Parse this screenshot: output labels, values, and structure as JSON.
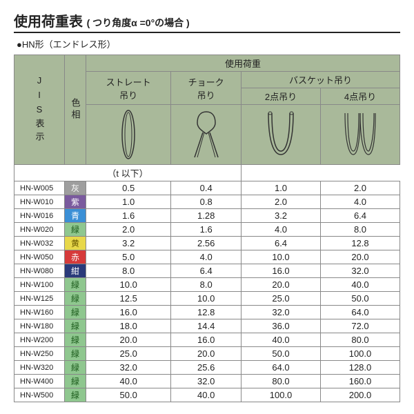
{
  "title_main": "使用荷重表",
  "title_sub": "( つり角度α =0°の場合 )",
  "subtitle": "●HN形（エンドレス形）",
  "header_top": "使用荷重",
  "header_cols": [
    "ストレート\n吊り",
    "チョーク\n吊り"
  ],
  "header_basket": "バスケット吊り",
  "header_basket_sub": [
    "2点吊り",
    "4点吊り"
  ],
  "jis_label": "JIS表示",
  "color_label": "色相",
  "unit_label": "（t 以下）",
  "rows": [
    {
      "code": "HN-W005",
      "color": "灰",
      "bg": "#9e9e9e",
      "fg": "#fff",
      "v": [
        "0.5",
        "0.4",
        "1.0",
        "2.0"
      ]
    },
    {
      "code": "HN-W010",
      "color": "紫",
      "bg": "#7a5a9e",
      "fg": "#fff",
      "v": [
        "1.0",
        "0.8",
        "2.0",
        "4.0"
      ]
    },
    {
      "code": "HN-W016",
      "color": "青",
      "bg": "#3a8fd6",
      "fg": "#fff",
      "v": [
        "1.6",
        "1.28",
        "3.2",
        "6.4"
      ]
    },
    {
      "code": "HN-W020",
      "color": "緑",
      "bg": "#8fc78f",
      "fg": "#1a5a1a",
      "v": [
        "2.0",
        "1.6",
        "4.0",
        "8.0"
      ]
    },
    {
      "code": "HN-W032",
      "color": "黄",
      "bg": "#e8d84a",
      "fg": "#6a5a00",
      "v": [
        "3.2",
        "2.56",
        "6.4",
        "12.8"
      ]
    },
    {
      "code": "HN-W050",
      "color": "赤",
      "bg": "#d63a3a",
      "fg": "#fff",
      "v": [
        "5.0",
        "4.0",
        "10.0",
        "20.0"
      ]
    },
    {
      "code": "HN-W080",
      "color": "紺",
      "bg": "#2a3a7a",
      "fg": "#fff",
      "v": [
        "8.0",
        "6.4",
        "16.0",
        "32.0"
      ]
    },
    {
      "code": "HN-W100",
      "color": "緑",
      "bg": "#8fc78f",
      "fg": "#1a5a1a",
      "v": [
        "10.0",
        "8.0",
        "20.0",
        "40.0"
      ]
    },
    {
      "code": "HN-W125",
      "color": "緑",
      "bg": "#8fc78f",
      "fg": "#1a5a1a",
      "v": [
        "12.5",
        "10.0",
        "25.0",
        "50.0"
      ]
    },
    {
      "code": "HN-W160",
      "color": "緑",
      "bg": "#8fc78f",
      "fg": "#1a5a1a",
      "v": [
        "16.0",
        "12.8",
        "32.0",
        "64.0"
      ]
    },
    {
      "code": "HN-W180",
      "color": "緑",
      "bg": "#8fc78f",
      "fg": "#1a5a1a",
      "v": [
        "18.0",
        "14.4",
        "36.0",
        "72.0"
      ]
    },
    {
      "code": "HN-W200",
      "color": "緑",
      "bg": "#8fc78f",
      "fg": "#1a5a1a",
      "v": [
        "20.0",
        "16.0",
        "40.0",
        "80.0"
      ]
    },
    {
      "code": "HN-W250",
      "color": "緑",
      "bg": "#8fc78f",
      "fg": "#1a5a1a",
      "v": [
        "25.0",
        "20.0",
        "50.0",
        "100.0"
      ]
    },
    {
      "code": "HN-W320",
      "color": "緑",
      "bg": "#8fc78f",
      "fg": "#1a5a1a",
      "v": [
        "32.0",
        "25.6",
        "64.0",
        "128.0"
      ]
    },
    {
      "code": "HN-W400",
      "color": "緑",
      "bg": "#8fc78f",
      "fg": "#1a5a1a",
      "v": [
        "40.0",
        "32.0",
        "80.0",
        "160.0"
      ]
    },
    {
      "code": "HN-W500",
      "color": "緑",
      "bg": "#8fc78f",
      "fg": "#1a5a1a",
      "v": [
        "50.0",
        "40.0",
        "100.0",
        "200.0"
      ]
    }
  ],
  "icons": {
    "straight_svg": "<svg width='34' height='78' viewBox='0 0 34 78'><ellipse cx='17' cy='39' rx='9' ry='35' fill='none' stroke='#333' stroke-width='1.5'/><ellipse cx='17' cy='39' rx='5' ry='32' fill='none' stroke='#333' stroke-width='1'/></svg>",
    "choke_svg": "<svg width='50' height='78' viewBox='0 0 50 78'><path d='M25 6 C15 6 12 14 12 22 C12 30 20 34 25 38 C30 34 38 30 38 22 C38 14 35 6 25 6 Z' fill='none' stroke='#333' stroke-width='1.5'/><path d='M20 36 L8 72 M30 36 L42 72' fill='none' stroke='#333' stroke-width='1.5'/><path d='M22 36 L12 72 M28 36 L38 72' fill='none' stroke='#333' stroke-width='1'/></svg>",
    "basket2_svg": "<svg width='60' height='78' viewBox='0 0 60 78'><path d='M12 8 C12 50 20 68 30 68 C40 68 48 50 48 8' fill='none' stroke='#333' stroke-width='1.5'/><path d='M17 8 C17 48 23 63 30 63 C37 63 43 48 43 8' fill='none' stroke='#333' stroke-width='1.5'/><ellipse cx='14.5' cy='8' rx='2.5' ry='2' fill='none' stroke='#333'/><ellipse cx='45.5' cy='8' rx='2.5' ry='2' fill='none' stroke='#333'/></svg>",
    "basket4_svg": "<svg width='60' height='78' viewBox='0 0 60 78'><g><path d='M8 8 C8 50 14 68 20 68 C26 68 30 50 30 8' fill='none' stroke='#333' stroke-width='1.2'/><path d='M12 8 C12 48 16 63 20 63 C24 63 28 48 28 8' fill='none' stroke='#333' stroke-width='1.2'/></g><g><path d='M30 8 C30 50 36 68 42 68 C48 68 52 50 52 8' fill='none' stroke='#333' stroke-width='1.2'/><path d='M34 8 C34 48 38 63 42 63 C44 63 50 48 50 8' fill='none' stroke='#333' stroke-width='1.2'/></g></svg>"
  }
}
